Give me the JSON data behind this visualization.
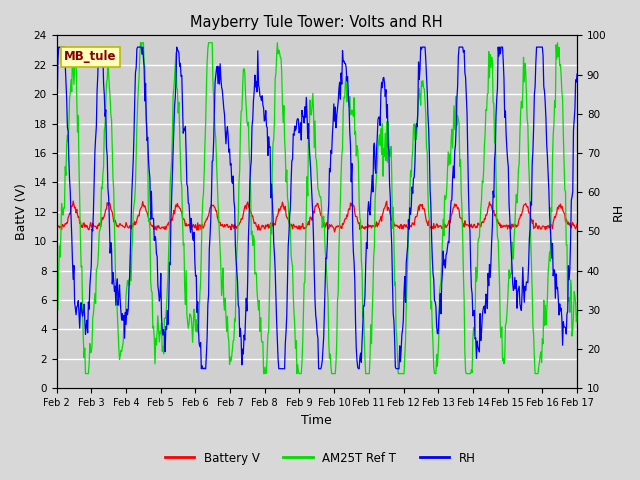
{
  "title": "Mayberry Tule Tower: Volts and RH",
  "xlabel": "Time",
  "ylabel_left": "BattV (V)",
  "ylabel_right": "RH",
  "annotation": "MB_tule",
  "left_ylim": [
    0,
    24
  ],
  "right_ylim": [
    10,
    100
  ],
  "left_yticks": [
    0,
    2,
    4,
    6,
    8,
    10,
    12,
    14,
    16,
    18,
    20,
    22,
    24
  ],
  "right_yticks": [
    10,
    20,
    30,
    40,
    50,
    60,
    70,
    80,
    90,
    100
  ],
  "xtick_labels": [
    "Feb 2",
    "Feb 3",
    "Feb 4",
    "Feb 5",
    "Feb 6",
    "Feb 7",
    "Feb 8",
    "Feb 9",
    "Feb 10",
    "Feb 11",
    "Feb 12",
    "Feb 13",
    "Feb 14",
    "Feb 15",
    "Feb 16",
    "Feb 17"
  ],
  "fig_bg_color": "#d8d8d8",
  "plot_bg_color": "#d0d0d0",
  "grid_color": "#ffffff",
  "battery_color": "#ff0000",
  "am25t_color": "#00dd00",
  "rh_color": "#0000ff",
  "legend_labels": [
    "Battery V",
    "AM25T Ref T",
    "RH"
  ],
  "annot_text_color": "#880000",
  "annot_bg_color": "#ffffbb",
  "annot_edge_color": "#bbbb00"
}
